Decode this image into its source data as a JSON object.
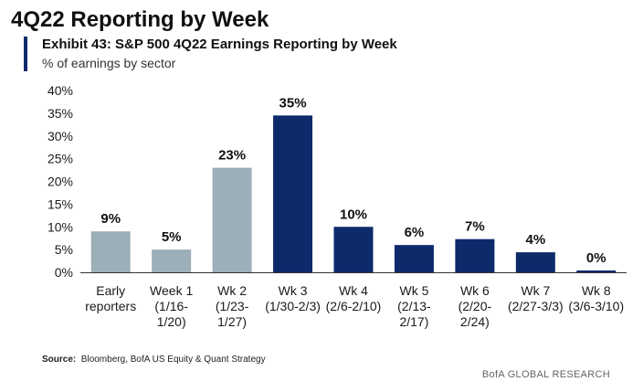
{
  "page": {
    "title": "4Q22 Reporting by Week",
    "exhibit_title": "Exhibit 43: S&P 500 4Q22 Earnings Reporting by Week",
    "subtitle": "% of earnings by sector",
    "source_label": "Source:",
    "source_text": "Bloomberg, BofA US Equity & Quant Strategy",
    "credit": "BofA GLOBAL RESEARCH"
  },
  "colors": {
    "past": "#9caeb8",
    "future": "#0d2a6b",
    "axis": "#333333",
    "text": "#1a1a1a"
  },
  "chart_data": {
    "type": "bar",
    "title": "Exhibit 43: S&P 500 4Q22 Earnings Reporting by Week",
    "subtitle": "% of earnings by sector",
    "xlabel": "",
    "ylabel": "",
    "ylim": [
      0,
      40
    ],
    "yticks": [
      0,
      5,
      10,
      15,
      20,
      25,
      30,
      35,
      40
    ],
    "ytick_labels": [
      "0%",
      "5%",
      "10%",
      "15%",
      "20%",
      "25%",
      "30%",
      "35%",
      "40%"
    ],
    "grid": false,
    "categories": [
      [
        "Early",
        "reporters"
      ],
      [
        "Week 1",
        "(1/16-",
        "1/20)"
      ],
      [
        "Wk 2",
        "(1/23-",
        "1/27)"
      ],
      [
        "Wk 3",
        "(1/30-2/3)"
      ],
      [
        "Wk 4",
        "(2/6-2/10)"
      ],
      [
        "Wk 5",
        "(2/13-",
        "2/17)"
      ],
      [
        "Wk 6",
        "(2/20-",
        "2/24)"
      ],
      [
        "Wk 7",
        "(2/27-3/3)"
      ],
      [
        "Wk 8",
        "(3/6-3/10)"
      ]
    ],
    "values": [
      9,
      5,
      23,
      35,
      10,
      6,
      7,
      4,
      0
    ],
    "bar_values_plotted": [
      9,
      5,
      23,
      34.5,
      10,
      6,
      7.3,
      4.4,
      0.4
    ],
    "data_labels": [
      "9%",
      "5%",
      "23%",
      "35%",
      "10%",
      "6%",
      "7%",
      "4%",
      "0%"
    ],
    "bar_status": [
      "past",
      "past",
      "past",
      "future",
      "future",
      "future",
      "future",
      "future",
      "future"
    ]
  }
}
